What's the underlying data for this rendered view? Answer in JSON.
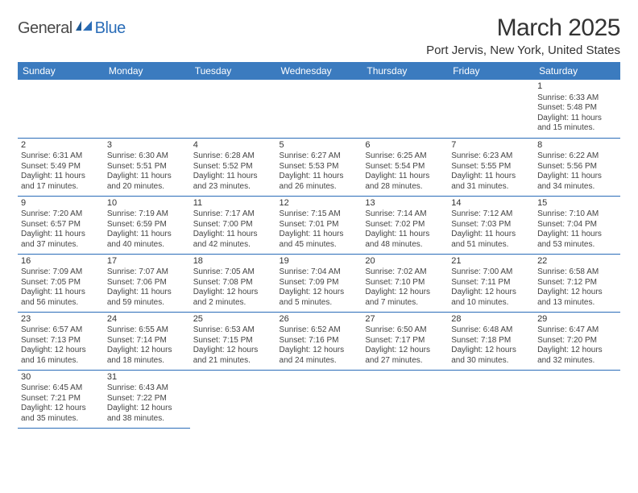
{
  "logo": {
    "part1": "General",
    "part2": "Blue"
  },
  "title": "March 2025",
  "location": "Port Jervis, New York, United States",
  "colors": {
    "header_bg": "#3b7bbf",
    "header_text": "#ffffff",
    "border": "#2a6db8",
    "logo_blue": "#2a6db8",
    "body_text": "#444444"
  },
  "day_headers": [
    "Sunday",
    "Monday",
    "Tuesday",
    "Wednesday",
    "Thursday",
    "Friday",
    "Saturday"
  ],
  "weeks": [
    [
      null,
      null,
      null,
      null,
      null,
      null,
      {
        "n": "1",
        "sr": "6:33 AM",
        "ss": "5:48 PM",
        "dl": "11 hours and 15 minutes."
      }
    ],
    [
      {
        "n": "2",
        "sr": "6:31 AM",
        "ss": "5:49 PM",
        "dl": "11 hours and 17 minutes."
      },
      {
        "n": "3",
        "sr": "6:30 AM",
        "ss": "5:51 PM",
        "dl": "11 hours and 20 minutes."
      },
      {
        "n": "4",
        "sr": "6:28 AM",
        "ss": "5:52 PM",
        "dl": "11 hours and 23 minutes."
      },
      {
        "n": "5",
        "sr": "6:27 AM",
        "ss": "5:53 PM",
        "dl": "11 hours and 26 minutes."
      },
      {
        "n": "6",
        "sr": "6:25 AM",
        "ss": "5:54 PM",
        "dl": "11 hours and 28 minutes."
      },
      {
        "n": "7",
        "sr": "6:23 AM",
        "ss": "5:55 PM",
        "dl": "11 hours and 31 minutes."
      },
      {
        "n": "8",
        "sr": "6:22 AM",
        "ss": "5:56 PM",
        "dl": "11 hours and 34 minutes."
      }
    ],
    [
      {
        "n": "9",
        "sr": "7:20 AM",
        "ss": "6:57 PM",
        "dl": "11 hours and 37 minutes."
      },
      {
        "n": "10",
        "sr": "7:19 AM",
        "ss": "6:59 PM",
        "dl": "11 hours and 40 minutes."
      },
      {
        "n": "11",
        "sr": "7:17 AM",
        "ss": "7:00 PM",
        "dl": "11 hours and 42 minutes."
      },
      {
        "n": "12",
        "sr": "7:15 AM",
        "ss": "7:01 PM",
        "dl": "11 hours and 45 minutes."
      },
      {
        "n": "13",
        "sr": "7:14 AM",
        "ss": "7:02 PM",
        "dl": "11 hours and 48 minutes."
      },
      {
        "n": "14",
        "sr": "7:12 AM",
        "ss": "7:03 PM",
        "dl": "11 hours and 51 minutes."
      },
      {
        "n": "15",
        "sr": "7:10 AM",
        "ss": "7:04 PM",
        "dl": "11 hours and 53 minutes."
      }
    ],
    [
      {
        "n": "16",
        "sr": "7:09 AM",
        "ss": "7:05 PM",
        "dl": "11 hours and 56 minutes."
      },
      {
        "n": "17",
        "sr": "7:07 AM",
        "ss": "7:06 PM",
        "dl": "11 hours and 59 minutes."
      },
      {
        "n": "18",
        "sr": "7:05 AM",
        "ss": "7:08 PM",
        "dl": "12 hours and 2 minutes."
      },
      {
        "n": "19",
        "sr": "7:04 AM",
        "ss": "7:09 PM",
        "dl": "12 hours and 5 minutes."
      },
      {
        "n": "20",
        "sr": "7:02 AM",
        "ss": "7:10 PM",
        "dl": "12 hours and 7 minutes."
      },
      {
        "n": "21",
        "sr": "7:00 AM",
        "ss": "7:11 PM",
        "dl": "12 hours and 10 minutes."
      },
      {
        "n": "22",
        "sr": "6:58 AM",
        "ss": "7:12 PM",
        "dl": "12 hours and 13 minutes."
      }
    ],
    [
      {
        "n": "23",
        "sr": "6:57 AM",
        "ss": "7:13 PM",
        "dl": "12 hours and 16 minutes."
      },
      {
        "n": "24",
        "sr": "6:55 AM",
        "ss": "7:14 PM",
        "dl": "12 hours and 18 minutes."
      },
      {
        "n": "25",
        "sr": "6:53 AM",
        "ss": "7:15 PM",
        "dl": "12 hours and 21 minutes."
      },
      {
        "n": "26",
        "sr": "6:52 AM",
        "ss": "7:16 PM",
        "dl": "12 hours and 24 minutes."
      },
      {
        "n": "27",
        "sr": "6:50 AM",
        "ss": "7:17 PM",
        "dl": "12 hours and 27 minutes."
      },
      {
        "n": "28",
        "sr": "6:48 AM",
        "ss": "7:18 PM",
        "dl": "12 hours and 30 minutes."
      },
      {
        "n": "29",
        "sr": "6:47 AM",
        "ss": "7:20 PM",
        "dl": "12 hours and 32 minutes."
      }
    ],
    [
      {
        "n": "30",
        "sr": "6:45 AM",
        "ss": "7:21 PM",
        "dl": "12 hours and 35 minutes."
      },
      {
        "n": "31",
        "sr": "6:43 AM",
        "ss": "7:22 PM",
        "dl": "12 hours and 38 minutes."
      },
      null,
      null,
      null,
      null,
      null
    ]
  ],
  "labels": {
    "sunrise": "Sunrise: ",
    "sunset": "Sunset: ",
    "daylight": "Daylight: "
  }
}
